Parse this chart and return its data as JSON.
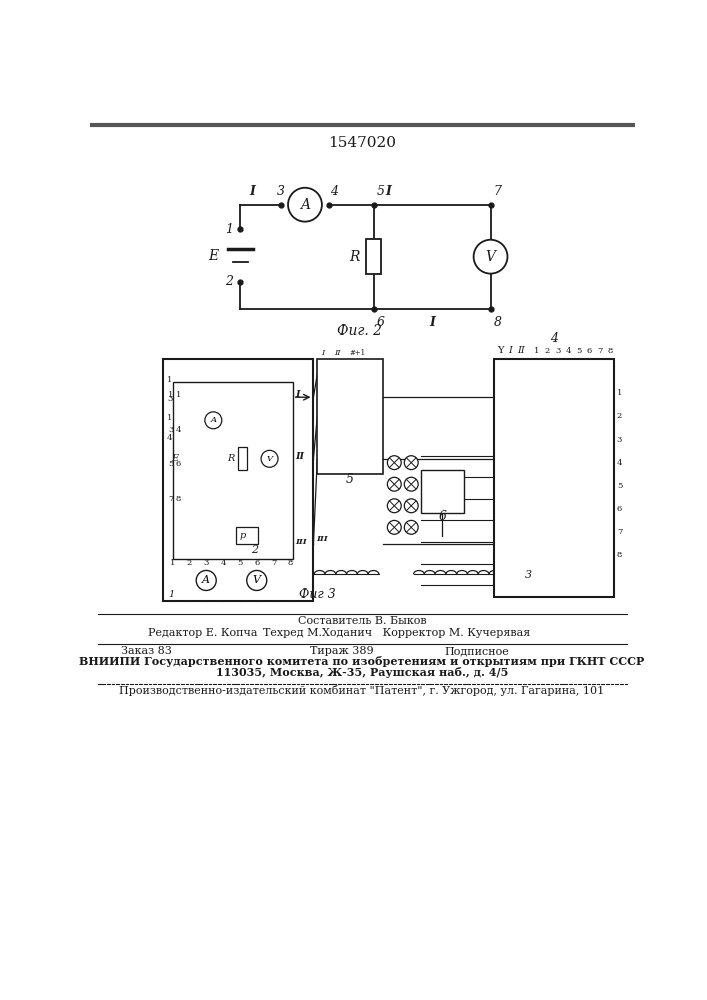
{
  "title": "1547020",
  "fig2_caption": "Фиг. 2",
  "fig3_caption": "Фиг 3",
  "vniiipi_line1": "ВНИИПИ Государственного комитета по изобретениям и открытиям при ГКНТ СССР",
  "vniiipi_line2": "113035, Москва, Ж-35, Раушская наб., д. 4/5",
  "patent_line": "Производственно-издательский комбинат \"Патент\", г. Ужгород, ул. Гагарина, 101",
  "bg_color": "#ffffff",
  "line_color": "#1a1a1a"
}
